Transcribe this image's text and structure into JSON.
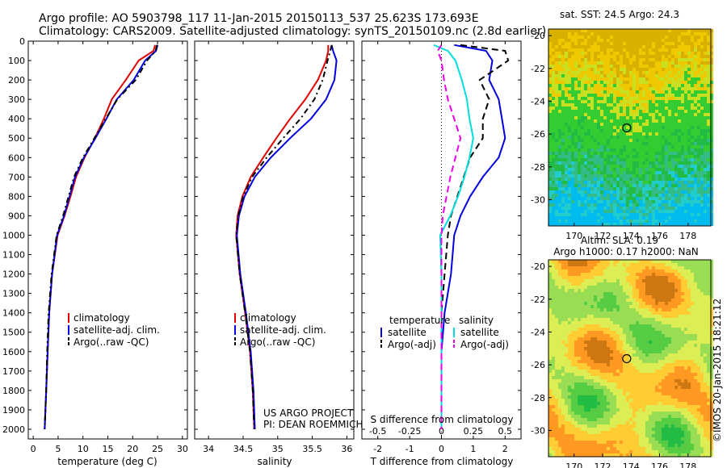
{
  "header": {
    "line1": "Argo profile: AO 5903798_117 11-Jan-2015 20150113_537 25.623S 173.693E",
    "line2": "Climatology: CARS2009. Satellite-adjusted climatology: synTS_20150109.nc (2.8d earlier)"
  },
  "credit": {
    "project": "US ARGO PROJECT",
    "pi": "PI: DEAN ROEMMICH",
    "stamp": "©IMOS 20-Jan-2015 18:21:12"
  },
  "colors": {
    "climatology": "#e00000",
    "satellite": "#0000e0",
    "argo": "#000000",
    "salinity_satellite": "#00dddd",
    "salinity_argo": "#ee00ee"
  },
  "chart_data": [
    {
      "type": "line",
      "panel": "temperature",
      "xlabel": "temperature (deg C)",
      "xlim": [
        -1,
        31
      ],
      "xticks": [
        0,
        5,
        10,
        15,
        20,
        25,
        30
      ],
      "ylim": [
        0,
        2050
      ],
      "yticks": [
        0,
        100,
        200,
        300,
        400,
        500,
        600,
        700,
        800,
        900,
        1000,
        1100,
        1200,
        1300,
        1400,
        1500,
        1600,
        1700,
        1800,
        1900,
        2000
      ],
      "y_reversed": true,
      "legend": [
        "climatology",
        "satellite-adj. clim.",
        "Argo(..raw -QC)"
      ],
      "legend_placement": "lower-center",
      "series": [
        {
          "name": "climatology",
          "x": [
            24.5,
            24.2,
            21.2,
            18.6,
            15.8,
            14.2,
            12.4,
            10.3,
            8.6,
            7.5,
            6.3,
            4.9,
            3.8,
            3.2,
            2.9,
            2.6,
            2.3
          ],
          "y": [
            20,
            50,
            100,
            200,
            300,
            400,
            500,
            600,
            700,
            800,
            900,
            1000,
            1200,
            1400,
            1600,
            1800,
            2000
          ]
        },
        {
          "name": "satellite-adj. clim.",
          "x": [
            25.0,
            24.7,
            22.5,
            20.2,
            16.8,
            14.7,
            12.5,
            10.2,
            8.4,
            7.3,
            6.2,
            4.8,
            3.8,
            3.2,
            2.9,
            2.6,
            2.3
          ],
          "y": [
            20,
            50,
            100,
            200,
            300,
            400,
            500,
            600,
            700,
            800,
            900,
            1000,
            1200,
            1400,
            1600,
            1800,
            2000
          ]
        },
        {
          "name": "Argo(..raw -QC)",
          "x": [
            24.9,
            24.6,
            22.9,
            20.6,
            16.9,
            14.6,
            12.3,
            10.0,
            8.2,
            7.1,
            6.0,
            4.7,
            3.7,
            3.1,
            2.8,
            2.6,
            2.3
          ],
          "y": [
            20,
            50,
            100,
            200,
            300,
            400,
            500,
            600,
            700,
            800,
            900,
            1000,
            1200,
            1400,
            1600,
            1800,
            2000
          ]
        }
      ]
    },
    {
      "type": "line",
      "panel": "salinity",
      "xlabel": "salinity",
      "xlim": [
        33.8,
        36.1
      ],
      "xticks": [
        34,
        34.5,
        35,
        35.5,
        36
      ],
      "ylim": [
        0,
        2050
      ],
      "y_reversed": true,
      "legend": [
        "climatology",
        "satellite-adj. clim.",
        "Argo(..raw -QC)"
      ],
      "legend_placement": "lower-center",
      "series": [
        {
          "name": "climatology",
          "x": [
            35.73,
            35.73,
            35.7,
            35.58,
            35.4,
            35.18,
            34.98,
            34.79,
            34.61,
            34.49,
            34.42,
            34.4,
            34.45,
            34.53,
            34.6,
            34.64,
            34.66
          ],
          "y": [
            20,
            50,
            100,
            200,
            300,
            400,
            500,
            600,
            700,
            800,
            900,
            1000,
            1200,
            1400,
            1600,
            1800,
            2000
          ]
        },
        {
          "name": "satellite-adj. clim.",
          "x": [
            35.78,
            35.8,
            35.85,
            35.82,
            35.7,
            35.48,
            35.18,
            34.9,
            34.67,
            34.52,
            34.44,
            34.41,
            34.46,
            34.54,
            34.61,
            34.65,
            34.67
          ],
          "y": [
            20,
            50,
            100,
            200,
            300,
            400,
            500,
            600,
            700,
            800,
            900,
            1000,
            1200,
            1400,
            1600,
            1800,
            2000
          ]
        },
        {
          "name": "Argo(..raw -QC)",
          "x": [
            35.78,
            35.76,
            35.72,
            35.65,
            35.53,
            35.33,
            35.08,
            34.84,
            34.63,
            34.5,
            34.43,
            34.4,
            34.45,
            34.53,
            34.6,
            34.64,
            34.66
          ],
          "y": [
            20,
            50,
            100,
            200,
            300,
            400,
            500,
            600,
            700,
            800,
            900,
            1000,
            1200,
            1400,
            1600,
            1800,
            2000
          ]
        }
      ]
    },
    {
      "type": "line",
      "panel": "difference",
      "xlabel": "T difference from climatology",
      "xlabel_top": "S difference from climatology",
      "xlim": [
        -2.5,
        2.5
      ],
      "xticks": [
        -2,
        -1,
        0,
        1,
        2
      ],
      "xticks_top": [
        -0.5,
        -0.25,
        0,
        0.25,
        0.5
      ],
      "ylim": [
        0,
        2050
      ],
      "y_reversed": true,
      "legend_titles": [
        "temperature",
        "salinity"
      ],
      "legend": [
        "satellite",
        "Argo(-adj)",
        "satellite",
        "Argo(-adj)"
      ],
      "legend_placement": "lower-center",
      "series": [
        {
          "name": "temperature satellite",
          "x": [
            0.4,
            1.4,
            1.6,
            1.5,
            1.8,
            1.9,
            2.0,
            1.8,
            1.3,
            0.9,
            0.6,
            0.4,
            0.3,
            0.1,
            0.0,
            0.0,
            0.0
          ],
          "y": [
            20,
            50,
            100,
            200,
            300,
            400,
            500,
            600,
            700,
            800,
            900,
            1000,
            1200,
            1400,
            1600,
            1800,
            2000
          ]
        },
        {
          "name": "temperature Argo(-adj)",
          "x": [
            0.6,
            2.0,
            2.1,
            1.2,
            1.5,
            1.3,
            1.3,
            0.9,
            0.7,
            0.5,
            0.3,
            0.2,
            0.1,
            0.0,
            0.0,
            0.0,
            0.0
          ],
          "y": [
            20,
            50,
            100,
            200,
            300,
            400,
            500,
            600,
            700,
            800,
            900,
            1000,
            1200,
            1400,
            1600,
            1800,
            2000
          ]
        },
        {
          "name": "salinity satellite",
          "x": [
            -0.06,
            0.05,
            0.11,
            0.16,
            0.2,
            0.22,
            0.25,
            0.22,
            0.18,
            0.13,
            0.07,
            -0.01,
            0.0,
            0.0,
            0.0,
            0.0,
            0.0
          ],
          "y": [
            20,
            50,
            100,
            200,
            300,
            400,
            500,
            600,
            700,
            800,
            900,
            1000,
            1200,
            1400,
            1600,
            1800,
            2000
          ]
        },
        {
          "name": "salinity Argo(-adj)",
          "x": [
            0.0,
            -0.03,
            0.0,
            0.02,
            0.05,
            0.1,
            0.15,
            0.11,
            0.07,
            0.04,
            0.01,
            0.0,
            0.0,
            0.0,
            0.0,
            0.0,
            0.0
          ],
          "y": [
            20,
            50,
            100,
            200,
            300,
            400,
            500,
            600,
            700,
            800,
            900,
            1000,
            1200,
            1400,
            1600,
            1800,
            2000
          ]
        }
      ]
    },
    {
      "type": "heatmap",
      "panel": "sst-map",
      "title": "sat. SST: 24.5  Argo: 24.3",
      "xlim": [
        168.2,
        179.6
      ],
      "ylim": [
        -31.6,
        -19.6
      ],
      "xticks": [
        170,
        172,
        174,
        176,
        178
      ],
      "yticks": [
        -20,
        -22,
        -24,
        -26,
        -28,
        -30
      ],
      "marker": {
        "lon": 173.693,
        "lat": -25.623
      },
      "colors": [
        "#d8b000",
        "#f0c800",
        "#c8e020",
        "#33cc33",
        "#22bb44",
        "#33bb88",
        "#22cccc",
        "#00bbee"
      ]
    },
    {
      "type": "heatmap",
      "panel": "sla-map",
      "title": "Altim. SLA: 0.19",
      "subtitle": "Argo h1000: 0.17 h2000: NaN",
      "xlim": [
        168.2,
        179.6
      ],
      "ylim": [
        -31.6,
        -19.6
      ],
      "xticks": [
        170,
        172,
        174,
        176,
        178
      ],
      "yticks": [
        -20,
        -22,
        -24,
        -26,
        -28,
        -30
      ],
      "marker": {
        "lon": 173.693,
        "lat": -25.623
      },
      "colors": [
        "#22bb44",
        "#55cc44",
        "#99dd55",
        "#ddee55",
        "#ffcc33",
        "#ff9922",
        "#cc7711"
      ]
    }
  ]
}
